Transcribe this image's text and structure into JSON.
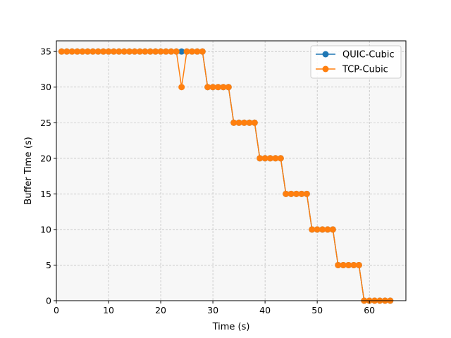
{
  "chart_data": {
    "type": "line",
    "title": "",
    "xlabel": "Time (s)",
    "ylabel": "Buffer Time (s)",
    "xlim": [
      0,
      67
    ],
    "ylim": [
      0,
      36.5
    ],
    "xticks": [
      0,
      10,
      20,
      30,
      40,
      50,
      60
    ],
    "yticks": [
      0,
      5,
      10,
      15,
      20,
      25,
      30,
      35
    ],
    "grid": true,
    "legend_position": "top-right",
    "x": [
      1,
      2,
      3,
      4,
      5,
      6,
      7,
      8,
      9,
      10,
      11,
      12,
      13,
      14,
      15,
      16,
      17,
      18,
      19,
      20,
      21,
      22,
      23,
      24,
      25,
      26,
      27,
      28,
      29,
      30,
      31,
      32,
      33,
      34,
      35,
      36,
      37,
      38,
      39,
      40,
      41,
      42,
      43,
      44,
      45,
      46,
      47,
      48,
      49,
      50,
      51,
      52,
      53,
      54,
      55,
      56,
      57,
      58,
      59,
      60,
      61,
      62,
      63,
      64
    ],
    "series": [
      {
        "name": "QUIC-Cubic",
        "color": "#1f77b4",
        "values": [
          35,
          35,
          35,
          35,
          35,
          35,
          35,
          35,
          35,
          35,
          35,
          35,
          35,
          35,
          35,
          35,
          35,
          35,
          35,
          35,
          35,
          35,
          35,
          35,
          35,
          35,
          35,
          35,
          30,
          30,
          30,
          30,
          30,
          25,
          25,
          25,
          25,
          25,
          20,
          20,
          20,
          20,
          20,
          15,
          15,
          15,
          15,
          15,
          10,
          10,
          10,
          10,
          10,
          5,
          5,
          5,
          5,
          5,
          0,
          0,
          0,
          0,
          0,
          0
        ]
      },
      {
        "name": "TCP-Cubic",
        "color": "#ff7f0e",
        "values": [
          35,
          35,
          35,
          35,
          35,
          35,
          35,
          35,
          35,
          35,
          35,
          35,
          35,
          35,
          35,
          35,
          35,
          35,
          35,
          35,
          35,
          35,
          35,
          30,
          35,
          35,
          35,
          35,
          30,
          30,
          30,
          30,
          30,
          25,
          25,
          25,
          25,
          25,
          20,
          20,
          20,
          20,
          20,
          15,
          15,
          15,
          15,
          15,
          10,
          10,
          10,
          10,
          10,
          5,
          5,
          5,
          5,
          5,
          0,
          0,
          0,
          0,
          0,
          0
        ]
      }
    ]
  }
}
